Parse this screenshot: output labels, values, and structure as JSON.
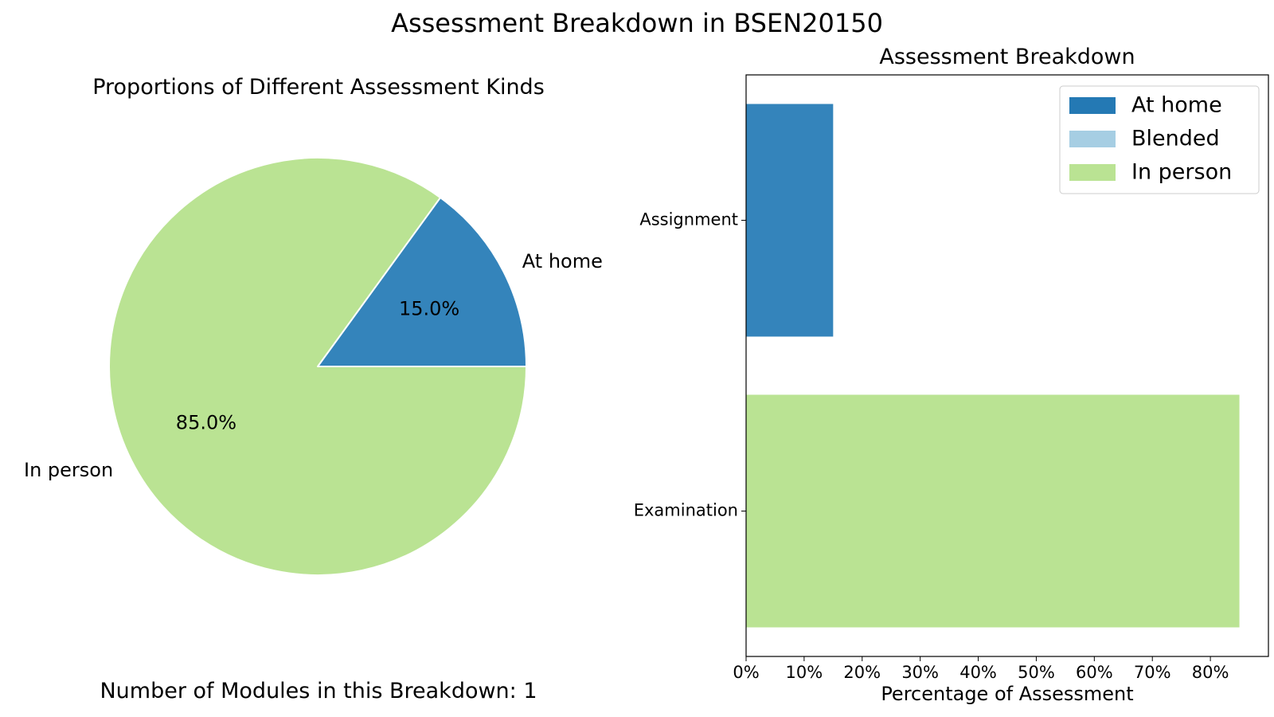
{
  "figure": {
    "title": "Assessment Breakdown in BSEN20150",
    "footer": "Number of Modules in this Breakdown: 1"
  },
  "colors": {
    "at_home_pie": "#3484bb",
    "at_home_legend": "#2479b4",
    "blended": "#a6cee3",
    "in_person": "#bae393"
  },
  "chart_data": [
    {
      "type": "pie",
      "title": "Proportions of Different Assessment Kinds",
      "slices": [
        {
          "label": "At home",
          "value": 15.0,
          "pct_label": "15.0%",
          "color": "#3484bb"
        },
        {
          "label": "In person",
          "value": 85.0,
          "pct_label": "85.0%",
          "color": "#bae393"
        }
      ]
    },
    {
      "type": "bar",
      "orientation": "horizontal",
      "stacked": true,
      "title": "Assessment Breakdown",
      "xlabel": "Percentage of Assessment",
      "ylabel": "",
      "xlim": [
        0,
        90
      ],
      "xticks": [
        0,
        10,
        20,
        30,
        40,
        50,
        60,
        70,
        80
      ],
      "xtick_labels": [
        "0%",
        "10%",
        "20%",
        "30%",
        "40%",
        "50%",
        "60%",
        "70%",
        "80%"
      ],
      "categories": [
        "Assignment",
        "Examination"
      ],
      "series": [
        {
          "name": "At home",
          "values": [
            15,
            0
          ],
          "color": "#3484bb",
          "legend_color": "#2479b4"
        },
        {
          "name": "Blended",
          "values": [
            0,
            0
          ],
          "color": "#a6cee3",
          "legend_color": "#a6cee3"
        },
        {
          "name": "In person",
          "values": [
            0,
            85
          ],
          "color": "#bae393",
          "legend_color": "#bae393"
        }
      ],
      "legend": "top-right",
      "grid": false
    }
  ]
}
